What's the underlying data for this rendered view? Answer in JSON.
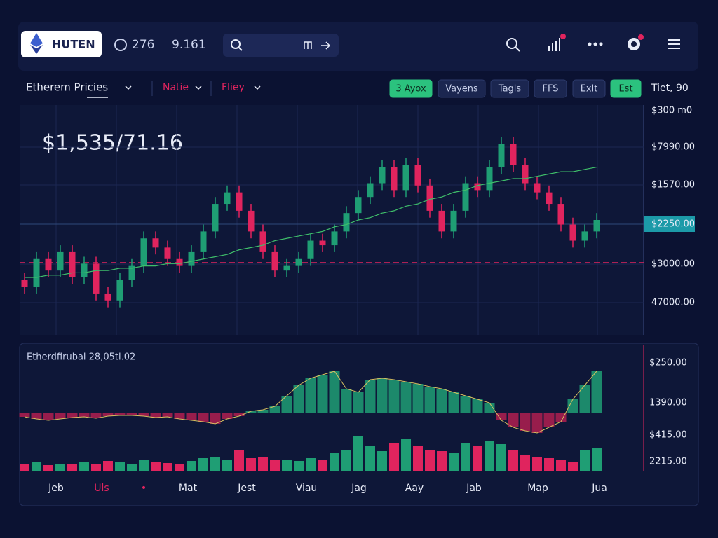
{
  "header": {
    "brand": "HUTEN",
    "stat1": "276",
    "stat2": "9.161"
  },
  "toolbar": {
    "title": "Etherem Pricies",
    "menus": [
      "Natie",
      "Fliey"
    ],
    "buttons": [
      {
        "label": "3 Ayox",
        "active": true
      },
      {
        "label": "Vayens",
        "active": false
      },
      {
        "label": "Tagls",
        "active": false
      },
      {
        "label": "FFS",
        "active": false
      },
      {
        "label": "Exlt",
        "active": false
      },
      {
        "label": "Est",
        "active": true
      }
    ],
    "info": "Tiet, 90"
  },
  "price_chart": {
    "type": "candlestick",
    "price_label": "$1,535/71.16",
    "ylim": [
      0,
      100
    ],
    "colors": {
      "up": "#1f9e74",
      "down": "#e0245e",
      "ma": "#3fbf6a"
    },
    "open": [
      24,
      21,
      33,
      28,
      36,
      25,
      31,
      18,
      15,
      24,
      30,
      42,
      38,
      33,
      30,
      36,
      45,
      57,
      62,
      54,
      45,
      36,
      28,
      30,
      33,
      41,
      39,
      45,
      53,
      60,
      66,
      73,
      63,
      74,
      65,
      54,
      45,
      54,
      66,
      63,
      73,
      83,
      74,
      66,
      62,
      57,
      48,
      41,
      45
    ],
    "high": [
      27,
      36,
      36,
      39,
      39,
      34,
      34,
      21,
      27,
      33,
      45,
      45,
      41,
      36,
      39,
      48,
      60,
      65,
      65,
      57,
      48,
      39,
      33,
      36,
      44,
      44,
      48,
      56,
      63,
      69,
      76,
      76,
      77,
      77,
      68,
      57,
      57,
      69,
      69,
      76,
      86,
      86,
      77,
      69,
      65,
      60,
      51,
      48,
      53
    ],
    "low": [
      18,
      18,
      25,
      25,
      22,
      22,
      15,
      12,
      12,
      21,
      27,
      35,
      30,
      27,
      27,
      33,
      42,
      54,
      51,
      42,
      33,
      25,
      25,
      27,
      30,
      36,
      36,
      42,
      50,
      57,
      63,
      60,
      60,
      62,
      51,
      42,
      42,
      51,
      60,
      60,
      70,
      71,
      63,
      59,
      54,
      45,
      38,
      38,
      42
    ],
    "close": [
      21,
      33,
      28,
      36,
      25,
      31,
      18,
      15,
      24,
      30,
      42,
      38,
      33,
      30,
      36,
      45,
      57,
      62,
      54,
      45,
      36,
      28,
      30,
      33,
      41,
      39,
      45,
      53,
      60,
      66,
      73,
      63,
      74,
      65,
      54,
      45,
      54,
      66,
      63,
      73,
      83,
      74,
      66,
      62,
      57,
      48,
      41,
      45,
      50
    ],
    "ma": [
      25,
      25,
      26,
      26,
      27,
      27,
      28,
      28,
      29,
      29,
      30,
      30,
      31,
      31,
      32,
      33,
      34,
      35,
      37,
      38,
      39,
      41,
      42,
      43,
      44,
      45,
      47,
      48,
      50,
      51,
      53,
      54,
      56,
      57,
      59,
      60,
      62,
      63,
      65,
      66,
      67,
      68,
      68,
      69,
      70,
      71,
      71,
      72,
      73
    ],
    "axis_labels": [
      "$300 m0",
      "$7990.00",
      "$1570.00",
      "$2250.00",
      "$3000.00",
      "47000.00"
    ]
  },
  "indicator": {
    "type": "bar",
    "label": "Etherdfirubal 28,05ti.02",
    "ylim": [
      -40,
      70
    ],
    "values": [
      -5,
      -8,
      -10,
      -8,
      -6,
      -5,
      -7,
      -4,
      -3,
      -3,
      -4,
      -6,
      -5,
      -8,
      -10,
      -12,
      -15,
      -8,
      -4,
      3,
      5,
      10,
      25,
      40,
      50,
      55,
      60,
      35,
      30,
      48,
      50,
      48,
      45,
      42,
      38,
      35,
      30,
      25,
      20,
      15,
      -10,
      -20,
      -25,
      -28,
      -20,
      -12,
      20,
      40,
      60
    ],
    "volume_ylim": [
      0,
      60
    ],
    "volume": [
      10,
      12,
      8,
      10,
      9,
      12,
      10,
      14,
      12,
      10,
      15,
      12,
      11,
      10,
      14,
      18,
      20,
      16,
      30,
      18,
      20,
      16,
      15,
      14,
      18,
      16,
      25,
      30,
      50,
      35,
      28,
      40,
      45,
      35,
      30,
      28,
      25,
      40,
      36,
      42,
      38,
      30,
      22,
      20,
      18,
      15,
      12,
      30,
      32
    ],
    "axis_labels": [
      "$250.00",
      "1390.00",
      "$415.00",
      "2215.00"
    ],
    "x_labels": [
      {
        "text": "Jeb",
        "color": "#e8ecf8"
      },
      {
        "text": "Uls",
        "color": "#e0245e"
      },
      {
        "text": "•",
        "color": "#e0245e"
      },
      {
        "text": "Mat",
        "color": "#e8ecf8"
      },
      {
        "text": "Jest",
        "color": "#e8ecf8"
      },
      {
        "text": "Viau",
        "color": "#e8ecf8"
      },
      {
        "text": "Jag",
        "color": "#e8ecf8"
      },
      {
        "text": "Aay",
        "color": "#e8ecf8"
      },
      {
        "text": "Jab",
        "color": "#e8ecf8"
      },
      {
        "text": "Map",
        "color": "#e8ecf8"
      },
      {
        "text": "Jua",
        "color": "#e8ecf8"
      }
    ]
  }
}
